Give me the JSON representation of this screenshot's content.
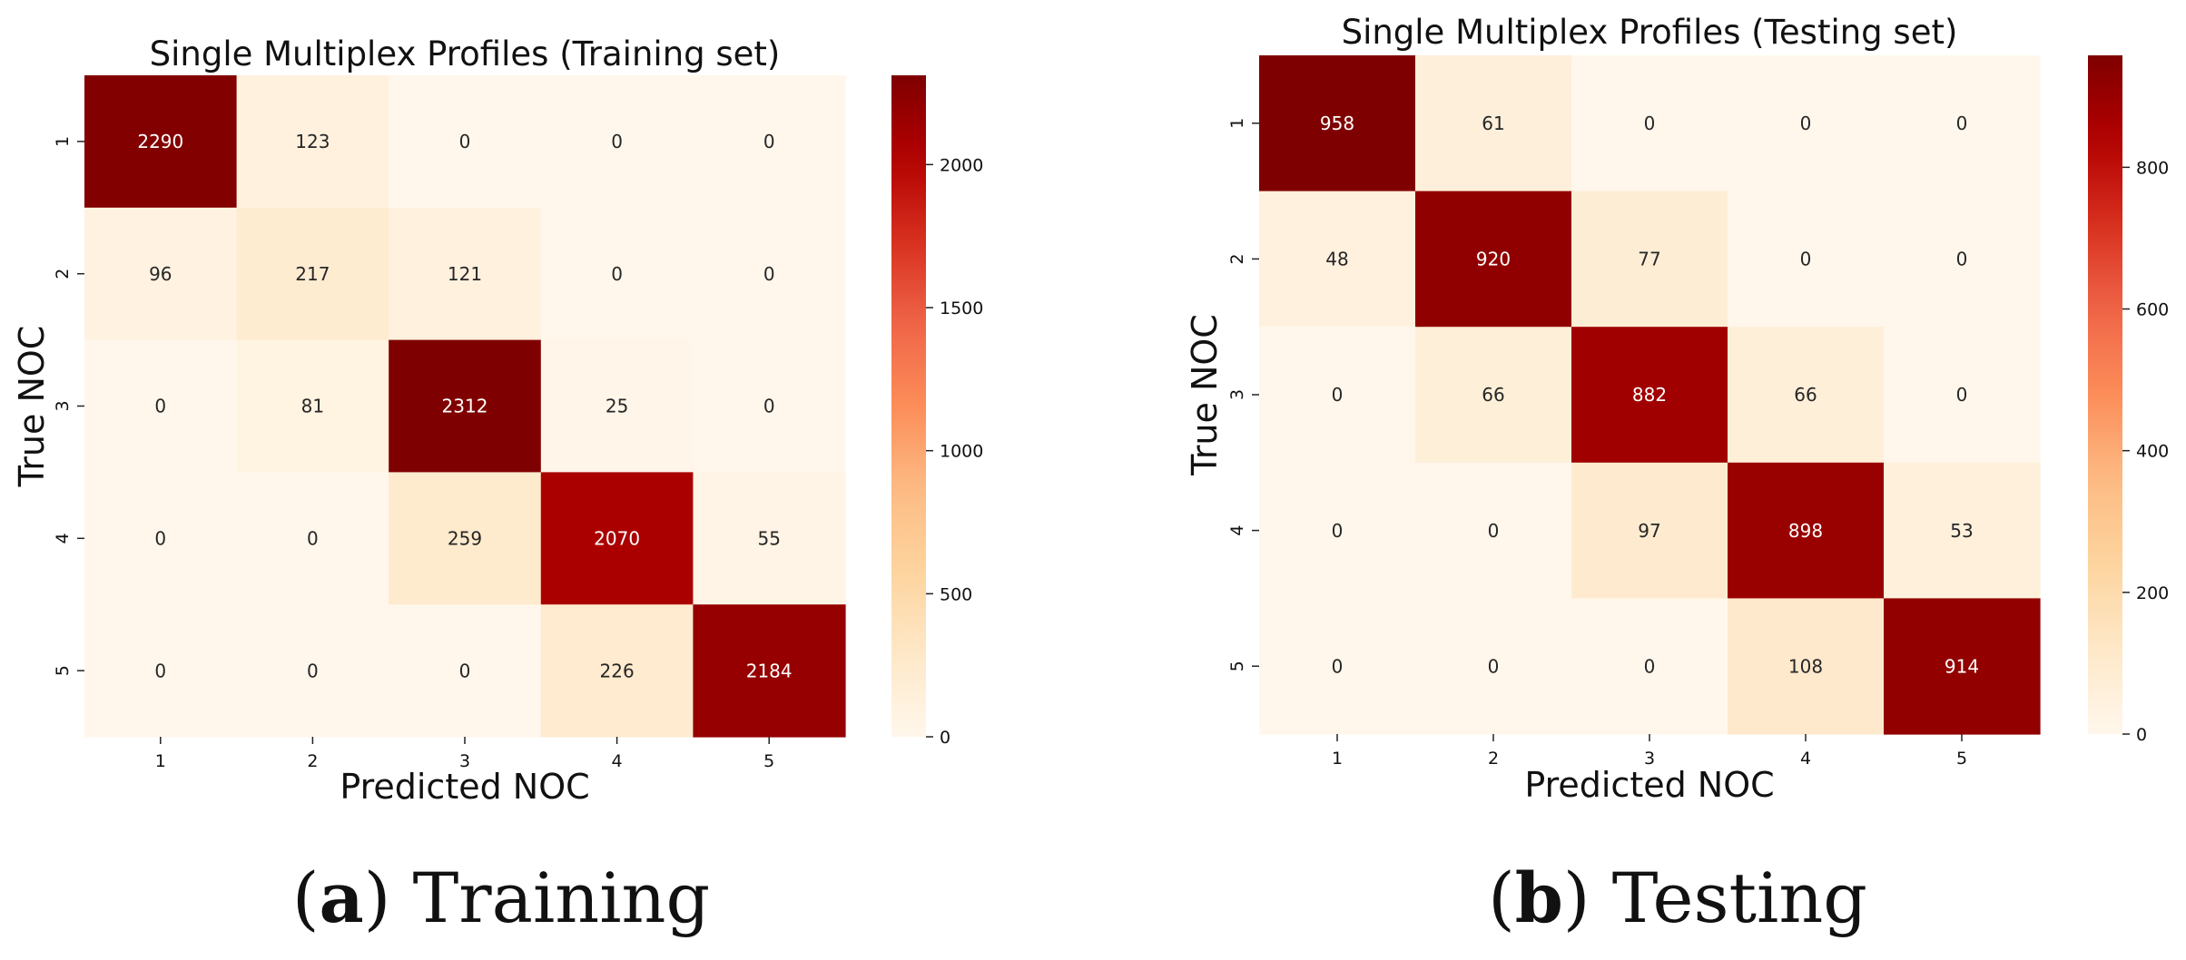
{
  "chart_data": [
    {
      "type": "heatmap",
      "title": "Single Multiplex Profiles (Training set)",
      "xlabel": "Predicted NOC",
      "ylabel": "True NOC",
      "x_ticks": [
        "1",
        "2",
        "3",
        "4",
        "5"
      ],
      "y_ticks": [
        "1",
        "2",
        "3",
        "4",
        "5"
      ],
      "matrix": [
        [
          2290,
          123,
          0,
          0,
          0
        ],
        [
          96,
          217,
          121,
          0,
          0
        ],
        [
          0,
          81,
          2312,
          25,
          0
        ],
        [
          0,
          0,
          259,
          2070,
          55
        ],
        [
          0,
          0,
          0,
          226,
          2184
        ]
      ],
      "colorbar": {
        "vmin": 0,
        "vmax": 2312,
        "ticks": [
          0,
          500,
          1000,
          1500,
          2000
        ],
        "colormap": "OrRd"
      }
    },
    {
      "type": "heatmap",
      "title": "Single Multiplex Profiles (Testing set)",
      "xlabel": "Predicted NOC",
      "ylabel": "True NOC",
      "x_ticks": [
        "1",
        "2",
        "3",
        "4",
        "5"
      ],
      "y_ticks": [
        "1",
        "2",
        "3",
        "4",
        "5"
      ],
      "matrix": [
        [
          958,
          61,
          0,
          0,
          0
        ],
        [
          48,
          920,
          77,
          0,
          0
        ],
        [
          0,
          66,
          882,
          66,
          0
        ],
        [
          0,
          0,
          97,
          898,
          53
        ],
        [
          0,
          0,
          0,
          108,
          914
        ]
      ],
      "colorbar": {
        "vmin": 0,
        "vmax": 958,
        "ticks": [
          0,
          200,
          400,
          600,
          800
        ],
        "colormap": "OrRd"
      }
    }
  ],
  "captions": [
    {
      "letter": "a",
      "text": "Training"
    },
    {
      "letter": "b",
      "text": "Testing"
    }
  ],
  "colors": {
    "scale": [
      "#fff7ec",
      "#fee8c8",
      "#fdd49e",
      "#fdbb84",
      "#fc8d59",
      "#ef6548",
      "#d7301f",
      "#b30000",
      "#7f0000"
    ],
    "light_text": "#ffffff",
    "dark_text": "#262626"
  }
}
